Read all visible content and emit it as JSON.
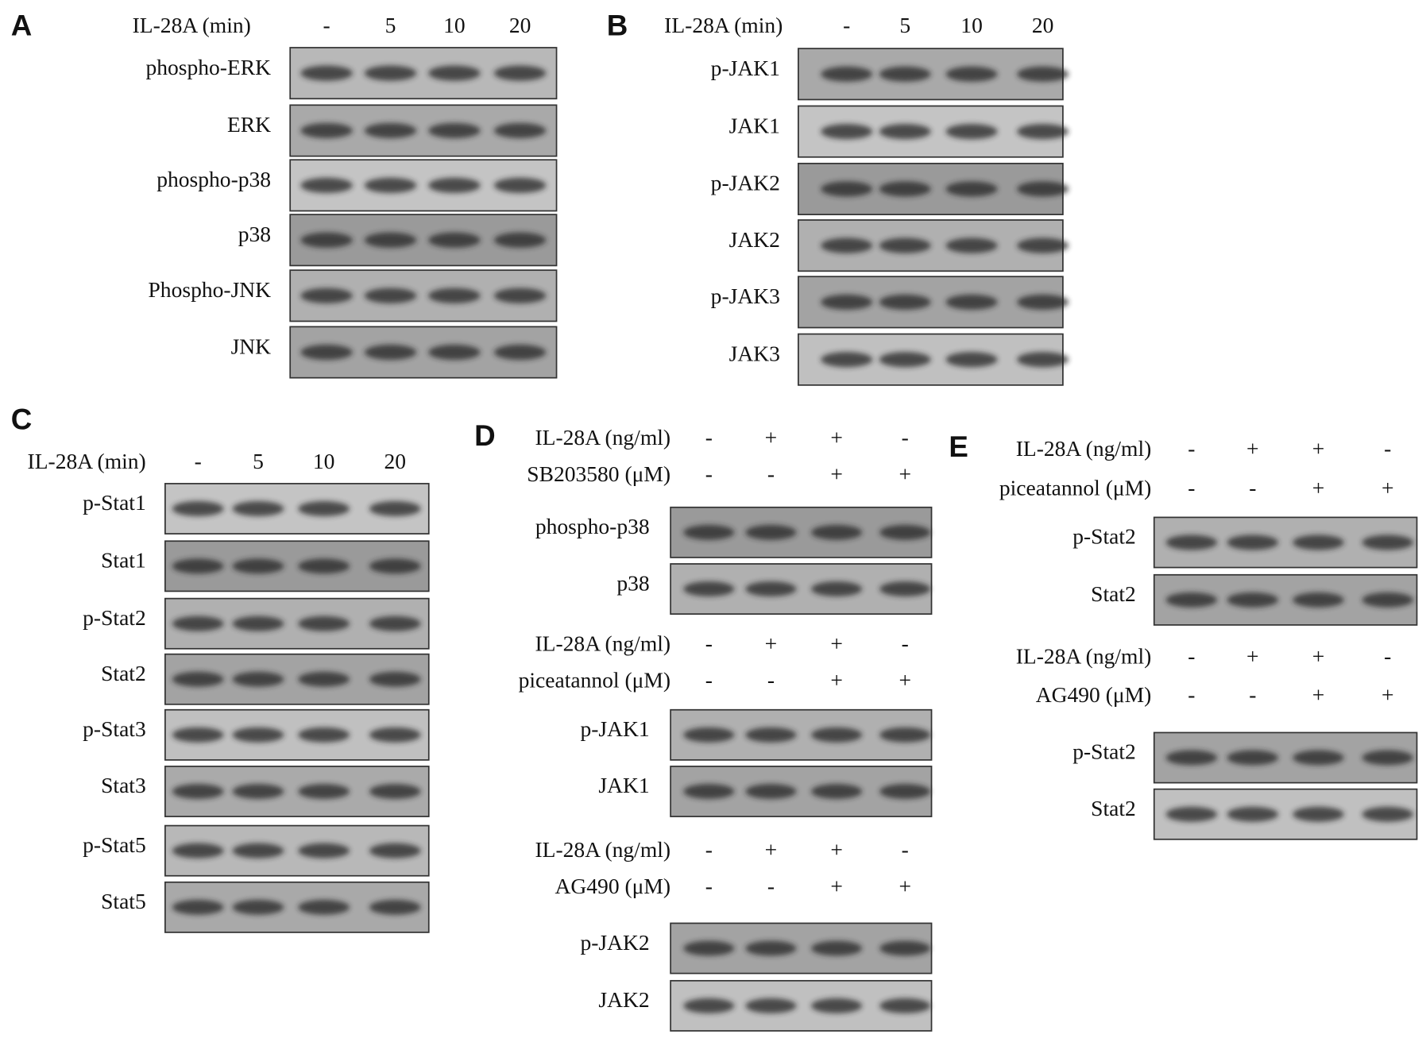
{
  "panels": [
    {
      "label": "A",
      "groups": [
        {
          "treatments": [
            {
              "name": "IL-28A (min)",
              "lanes": [
                "-",
                "5",
                "10",
                "20"
              ]
            }
          ],
          "blots": [
            "phospho-ERK",
            "ERK",
            "phospho-p38",
            "p38",
            "Phospho-JNK",
            "JNK"
          ]
        }
      ]
    },
    {
      "label": "B",
      "groups": [
        {
          "treatments": [
            {
              "name": "IL-28A (min)",
              "lanes": [
                "-",
                "5",
                "10",
                "20"
              ]
            }
          ],
          "blots": [
            "p-JAK1",
            "JAK1",
            "p-JAK2",
            "JAK2",
            "p-JAK3",
            "JAK3"
          ]
        }
      ]
    },
    {
      "label": "C",
      "groups": [
        {
          "treatments": [
            {
              "name": "IL-28A (min)",
              "lanes": [
                "-",
                "5",
                "10",
                "20"
              ]
            }
          ],
          "blots": [
            "p-Stat1",
            "Stat1",
            "p-Stat2",
            "Stat2",
            "p-Stat3",
            "Stat3",
            "p-Stat5",
            "Stat5"
          ]
        }
      ]
    },
    {
      "label": "D",
      "groups": [
        {
          "treatments": [
            {
              "name": "IL-28A (ng/ml)",
              "lanes": [
                "-",
                "+",
                "+",
                "-"
              ]
            },
            {
              "name": "SB203580 (μM)",
              "lanes": [
                "-",
                "-",
                "+",
                "+"
              ]
            }
          ],
          "blots": [
            "phospho-p38",
            "p38"
          ]
        },
        {
          "treatments": [
            {
              "name": "IL-28A (ng/ml)",
              "lanes": [
                "-",
                "+",
                "+",
                "-"
              ]
            },
            {
              "name": "piceatannol (μM)",
              "lanes": [
                "-",
                "-",
                "+",
                "+"
              ]
            }
          ],
          "blots": [
            "p-JAK1",
            "JAK1"
          ]
        },
        {
          "treatments": [
            {
              "name": "IL-28A (ng/ml)",
              "lanes": [
                "-",
                "+",
                "+",
                "-"
              ]
            },
            {
              "name": "AG490 (μM)",
              "lanes": [
                "-",
                "-",
                "+",
                "+"
              ]
            }
          ],
          "blots": [
            "p-JAK2",
            "JAK2"
          ]
        }
      ]
    },
    {
      "label": "E",
      "groups": [
        {
          "treatments": [
            {
              "name": "IL-28A (ng/ml)",
              "lanes": [
                "-",
                "+",
                "+",
                "-"
              ]
            },
            {
              "name": "piceatannol (μM)",
              "lanes": [
                "-",
                "-",
                "+",
                "+"
              ]
            }
          ],
          "blots": [
            "p-Stat2",
            "Stat2"
          ]
        },
        {
          "treatments": [
            {
              "name": "IL-28A (ng/ml)",
              "lanes": [
                "-",
                "+",
                "+",
                "-"
              ]
            },
            {
              "name": "AG490 (μM)",
              "lanes": [
                "-",
                "-",
                "+",
                "+"
              ]
            }
          ],
          "blots": [
            "p-Stat2",
            "Stat2"
          ]
        }
      ]
    }
  ]
}
